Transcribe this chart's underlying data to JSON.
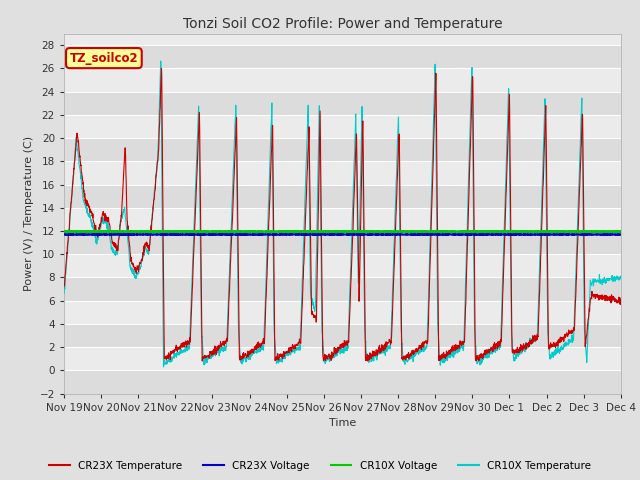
{
  "title": "Tonzi Soil CO2 Profile: Power and Temperature",
  "xlabel": "Time",
  "ylabel": "Power (V) / Temperature (C)",
  "ylim": [
    -2,
    29
  ],
  "yticks": [
    -2,
    0,
    2,
    4,
    6,
    8,
    10,
    12,
    14,
    16,
    18,
    20,
    22,
    24,
    26,
    28
  ],
  "xtick_labels": [
    "Nov 19",
    "Nov 20",
    "Nov 21",
    "Nov 22",
    "Nov 23",
    "Nov 24",
    "Nov 25",
    "Nov 26",
    "Nov 27",
    "Nov 28",
    "Nov 29",
    "Nov 30",
    "Dec 1",
    "Dec 2",
    "Dec 3",
    "Dec 4"
  ],
  "legend_labels": [
    "CR23X Temperature",
    "CR23X Voltage",
    "CR10X Voltage",
    "CR10X Temperature"
  ],
  "legend_colors": [
    "#cc0000",
    "#0000cc",
    "#00cc00",
    "#00cccc"
  ],
  "cr23x_voltage_value": 11.7,
  "cr10x_voltage_value": 11.95,
  "annotation_text": "TZ_soilco2",
  "annotation_bg": "#ffff99",
  "annotation_border": "#cc0000",
  "background_color": "#e0e0e0",
  "plot_bg": "#ebebeb",
  "title_fontsize": 10,
  "axis_fontsize": 8,
  "tick_fontsize": 7.5
}
